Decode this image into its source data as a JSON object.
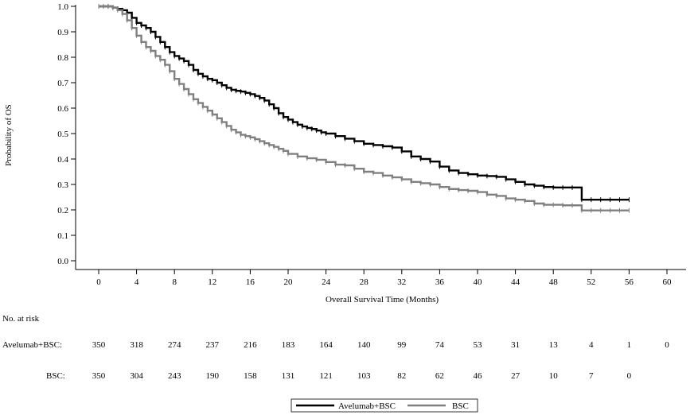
{
  "chart_data": {
    "type": "line",
    "title": "",
    "xlabel": "Overall Survival Time (Months)",
    "ylabel": "Probability of OS",
    "xlim": [
      0,
      60
    ],
    "ylim": [
      0.0,
      1.0
    ],
    "xticks": [
      0,
      4,
      8,
      12,
      16,
      20,
      24,
      28,
      32,
      36,
      40,
      44,
      48,
      52,
      56,
      60
    ],
    "xtick_labels": [
      "0",
      "4",
      "8",
      "12",
      "16",
      "20",
      "24",
      "28",
      "32",
      "36",
      "40",
      "44",
      "48",
      "52",
      "56",
      "60"
    ],
    "yticks": [
      0.0,
      0.1,
      0.2,
      0.3,
      0.4,
      0.5,
      0.6,
      0.7,
      0.8,
      0.9,
      1.0
    ],
    "ytick_labels": [
      "0.0",
      "0.1",
      "0.2",
      "0.3",
      "0.4",
      "0.5",
      "0.6",
      "0.7",
      "0.8",
      "0.9",
      "1.0"
    ],
    "grid": false,
    "legend_position": "bottom-center",
    "series": [
      {
        "name": "Avelumab+BSC",
        "color": "#000000",
        "step": true,
        "points": [
          [
            0,
            1.0
          ],
          [
            0.5,
            1.0
          ],
          [
            1,
            1.0
          ],
          [
            1.5,
            0.995
          ],
          [
            2,
            0.99
          ],
          [
            2.5,
            0.985
          ],
          [
            3,
            0.975
          ],
          [
            3.5,
            0.955
          ],
          [
            4,
            0.935
          ],
          [
            4.5,
            0.925
          ],
          [
            5,
            0.915
          ],
          [
            5.5,
            0.9
          ],
          [
            6,
            0.88
          ],
          [
            6.5,
            0.86
          ],
          [
            7,
            0.84
          ],
          [
            7.5,
            0.82
          ],
          [
            8,
            0.805
          ],
          [
            8.5,
            0.795
          ],
          [
            9,
            0.785
          ],
          [
            9.5,
            0.77
          ],
          [
            10,
            0.75
          ],
          [
            10.5,
            0.735
          ],
          [
            11,
            0.725
          ],
          [
            11.5,
            0.715
          ],
          [
            12,
            0.71
          ],
          [
            12.5,
            0.7
          ],
          [
            13,
            0.69
          ],
          [
            13.5,
            0.68
          ],
          [
            14,
            0.672
          ],
          [
            14.5,
            0.668
          ],
          [
            15,
            0.665
          ],
          [
            15.5,
            0.66
          ],
          [
            16,
            0.655
          ],
          [
            16.5,
            0.648
          ],
          [
            17,
            0.64
          ],
          [
            17.5,
            0.63
          ],
          [
            18,
            0.615
          ],
          [
            18.5,
            0.6
          ],
          [
            19,
            0.58
          ],
          [
            19.5,
            0.565
          ],
          [
            20,
            0.555
          ],
          [
            20.5,
            0.545
          ],
          [
            21,
            0.535
          ],
          [
            21.5,
            0.528
          ],
          [
            22,
            0.522
          ],
          [
            22.5,
            0.518
          ],
          [
            23,
            0.512
          ],
          [
            23.5,
            0.505
          ],
          [
            24,
            0.5
          ],
          [
            25,
            0.49
          ],
          [
            26,
            0.48
          ],
          [
            27,
            0.47
          ],
          [
            28,
            0.46
          ],
          [
            29,
            0.455
          ],
          [
            30,
            0.45
          ],
          [
            31,
            0.445
          ],
          [
            32,
            0.43
          ],
          [
            33,
            0.41
          ],
          [
            34,
            0.4
          ],
          [
            35,
            0.39
          ],
          [
            36,
            0.37
          ],
          [
            37,
            0.355
          ],
          [
            38,
            0.345
          ],
          [
            39,
            0.34
          ],
          [
            40,
            0.335
          ],
          [
            41,
            0.333
          ],
          [
            42,
            0.33
          ],
          [
            43,
            0.32
          ],
          [
            44,
            0.31
          ],
          [
            45,
            0.3
          ],
          [
            46,
            0.295
          ],
          [
            47,
            0.29
          ],
          [
            48,
            0.288
          ],
          [
            49,
            0.288
          ],
          [
            50,
            0.288
          ],
          [
            51,
            0.24
          ],
          [
            52,
            0.24
          ],
          [
            53,
            0.24
          ],
          [
            54,
            0.24
          ],
          [
            55,
            0.24
          ],
          [
            56,
            0.24
          ]
        ]
      },
      {
        "name": "BSC",
        "color": "#808080",
        "step": true,
        "points": [
          [
            0,
            1.0
          ],
          [
            0.5,
            1.0
          ],
          [
            1,
            1.0
          ],
          [
            1.5,
            0.995
          ],
          [
            2,
            0.985
          ],
          [
            2.5,
            0.97
          ],
          [
            3,
            0.945
          ],
          [
            3.5,
            0.915
          ],
          [
            4,
            0.885
          ],
          [
            4.5,
            0.86
          ],
          [
            5,
            0.84
          ],
          [
            5.5,
            0.825
          ],
          [
            6,
            0.805
          ],
          [
            6.5,
            0.79
          ],
          [
            7,
            0.77
          ],
          [
            7.5,
            0.745
          ],
          [
            8,
            0.715
          ],
          [
            8.5,
            0.695
          ],
          [
            9,
            0.675
          ],
          [
            9.5,
            0.655
          ],
          [
            10,
            0.635
          ],
          [
            10.5,
            0.62
          ],
          [
            11,
            0.605
          ],
          [
            11.5,
            0.59
          ],
          [
            12,
            0.575
          ],
          [
            12.5,
            0.56
          ],
          [
            13,
            0.545
          ],
          [
            13.5,
            0.53
          ],
          [
            14,
            0.515
          ],
          [
            14.5,
            0.505
          ],
          [
            15,
            0.495
          ],
          [
            15.5,
            0.49
          ],
          [
            16,
            0.485
          ],
          [
            16.5,
            0.478
          ],
          [
            17,
            0.47
          ],
          [
            17.5,
            0.462
          ],
          [
            18,
            0.455
          ],
          [
            18.5,
            0.448
          ],
          [
            19,
            0.44
          ],
          [
            19.5,
            0.432
          ],
          [
            20,
            0.42
          ],
          [
            21,
            0.41
          ],
          [
            22,
            0.403
          ],
          [
            23,
            0.397
          ],
          [
            24,
            0.388
          ],
          [
            25,
            0.378
          ],
          [
            26,
            0.375
          ],
          [
            27,
            0.362
          ],
          [
            28,
            0.35
          ],
          [
            29,
            0.345
          ],
          [
            30,
            0.335
          ],
          [
            31,
            0.328
          ],
          [
            32,
            0.32
          ],
          [
            33,
            0.31
          ],
          [
            34,
            0.305
          ],
          [
            35,
            0.3
          ],
          [
            36,
            0.29
          ],
          [
            37,
            0.282
          ],
          [
            38,
            0.278
          ],
          [
            39,
            0.275
          ],
          [
            40,
            0.27
          ],
          [
            41,
            0.26
          ],
          [
            42,
            0.255
          ],
          [
            43,
            0.245
          ],
          [
            44,
            0.24
          ],
          [
            45,
            0.235
          ],
          [
            46,
            0.225
          ],
          [
            47,
            0.22
          ],
          [
            48,
            0.22
          ],
          [
            49,
            0.218
          ],
          [
            50,
            0.218
          ],
          [
            51,
            0.198
          ],
          [
            52,
            0.198
          ],
          [
            53,
            0.198
          ],
          [
            54,
            0.198
          ],
          [
            55,
            0.198
          ],
          [
            56,
            0.198
          ]
        ]
      }
    ],
    "at_risk": {
      "header": "No. at risk",
      "rows": [
        {
          "label": "Avelumab+BSC:",
          "values": [
            "350",
            "318",
            "274",
            "237",
            "216",
            "183",
            "164",
            "140",
            "99",
            "74",
            "53",
            "31",
            "13",
            "4",
            "1",
            "0"
          ]
        },
        {
          "label": "BSC:",
          "values": [
            "350",
            "304",
            "243",
            "190",
            "158",
            "131",
            "121",
            "103",
            "82",
            "62",
            "46",
            "27",
            "10",
            "7",
            "0"
          ]
        }
      ]
    }
  }
}
